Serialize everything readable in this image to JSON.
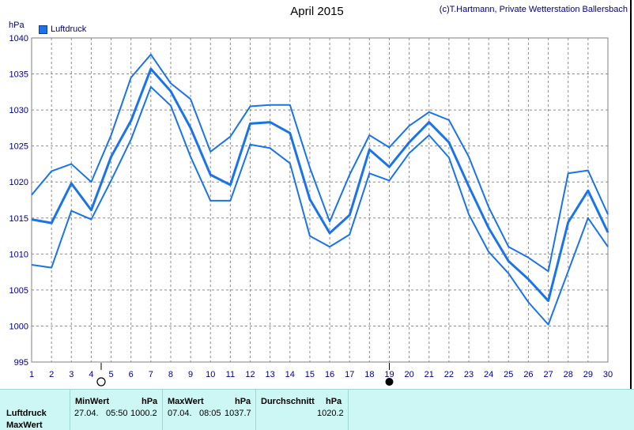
{
  "title": "April 2015",
  "copyright": "(c)T.Hartmann, Private Wetterstation Ballersbach",
  "legend_label": "Luftdruck",
  "chart_data": {
    "type": "line",
    "title": "April 2015",
    "ylabel": "hPa",
    "ylim": [
      995,
      1040
    ],
    "xlim": [
      1,
      30
    ],
    "grid": true,
    "legend": "top-left",
    "x": [
      1,
      2,
      3,
      4,
      5,
      6,
      7,
      8,
      9,
      10,
      11,
      12,
      13,
      14,
      15,
      16,
      17,
      18,
      19,
      20,
      21,
      22,
      23,
      24,
      25,
      26,
      27,
      28,
      29,
      30
    ],
    "x_tick_labels": [
      "1",
      "2",
      "3",
      "4",
      "5",
      "6",
      "7",
      "8",
      "9",
      "10",
      "11",
      "12",
      "13",
      "14",
      "15",
      "16",
      "17",
      "18",
      "19",
      "20",
      "21",
      "22",
      "23",
      "24",
      "25",
      "26",
      "27",
      "28",
      "29",
      "30"
    ],
    "y_ticks": [
      995,
      1000,
      1005,
      1010,
      1015,
      1020,
      1025,
      1030,
      1035,
      1040
    ],
    "series": [
      {
        "name": "Luftdruck",
        "role": "max",
        "color": "#1a73e8",
        "values": [
          1018.2,
          1021.5,
          1022.5,
          1020.0,
          1026.5,
          1034.5,
          1037.7,
          1033.7,
          1031.5,
          1024.2,
          1026.3,
          1030.5,
          1030.7,
          1030.7,
          1022.0,
          1014.5,
          1021.0,
          1026.5,
          1024.8,
          1027.8,
          1029.7,
          1028.6,
          1023.5,
          1016.5,
          1011.0,
          1009.5,
          1007.6,
          1021.2,
          1021.6,
          1015.5
        ]
      },
      {
        "role": "mean",
        "color": "#1a73e8",
        "values": [
          1014.8,
          1014.3,
          1019.8,
          1016.1,
          1023.5,
          1028.5,
          1035.7,
          1032.6,
          1027.5,
          1021.0,
          1019.6,
          1028.1,
          1028.3,
          1026.8,
          1017.6,
          1012.9,
          1015.4,
          1024.5,
          1022.1,
          1025.5,
          1028.3,
          1025.5,
          1019.4,
          1013.6,
          1009.0,
          1006.5,
          1003.5,
          1014.4,
          1018.8,
          1013.0
        ]
      },
      {
        "role": "min",
        "color": "#1a73e8",
        "values": [
          1008.5,
          1008.1,
          1016.0,
          1014.8,
          1020.2,
          1025.9,
          1033.2,
          1030.6,
          1023.5,
          1017.4,
          1017.4,
          1025.2,
          1024.7,
          1022.6,
          1012.5,
          1011.0,
          1012.7,
          1021.2,
          1020.2,
          1024.0,
          1026.5,
          1023.4,
          1015.5,
          1010.3,
          1007.3,
          1003.3,
          1000.2,
          1007.6,
          1015.0,
          1011.0
        ]
      }
    ],
    "markers": [
      {
        "type": "full-moon-symbol",
        "x": 4.5
      },
      {
        "type": "new-moon-symbol",
        "x": 19
      }
    ]
  },
  "stats": {
    "row_label_1": "Luftdruck",
    "row_label_2": "MaxWert",
    "min": {
      "header": "MinWert",
      "unit": "hPa",
      "date": "27.04.",
      "time": "05:50",
      "value": "1000.2"
    },
    "max": {
      "header": "MaxWert",
      "unit": "hPa",
      "date": "07.04.",
      "time": "08:05",
      "value": "1037.7"
    },
    "avg": {
      "header": "Durchschnitt",
      "unit": "hPa",
      "value": "1020.2"
    }
  }
}
